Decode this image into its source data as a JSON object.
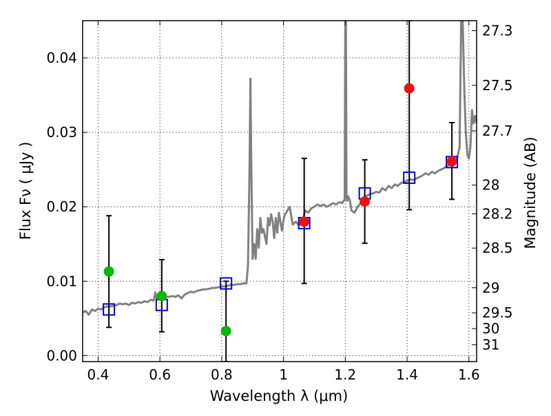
{
  "chart_data": {
    "type": "scatter",
    "xlabel": "Wavelength  λ (μm)",
    "ylabel": "Flux  Fν  ( μJy )",
    "ylabel_right": "Magnitude (AB)",
    "xlim": [
      0.35,
      1.625
    ],
    "ylim": [
      -0.0008,
      0.045
    ],
    "grid": true,
    "x_ticks": [
      0.4,
      0.6,
      0.8,
      1.0,
      1.2,
      1.4,
      1.6
    ],
    "x_tick_labels": [
      "0.4",
      "0.6",
      "0.8",
      "1",
      "1.2",
      "1.4",
      "1.6"
    ],
    "y_ticks": [
      0.0,
      0.01,
      0.02,
      0.03,
      0.04
    ],
    "y_tick_labels": [
      "0.00",
      "0.01",
      "0.02",
      "0.03",
      "0.04"
    ],
    "right_ticks": [
      {
        "label": "27.3",
        "flux": 0.04365
      },
      {
        "label": "27.5",
        "flux": 0.03631
      },
      {
        "label": "27.7",
        "flux": 0.0302
      },
      {
        "label": "28",
        "flux": 0.02291
      },
      {
        "label": "28.2",
        "flux": 0.01905
      },
      {
        "label": "28.5",
        "flux": 0.01445
      },
      {
        "label": "29",
        "flux": 0.00912
      },
      {
        "label": "29.5",
        "flux": 0.00575
      },
      {
        "label": "30",
        "flux": 0.00363
      },
      {
        "label": "31",
        "flux": 0.00145
      }
    ],
    "colors": {
      "model": "#808080",
      "green_points": "#00bb00",
      "red_points": "#ee1111",
      "squares": "#0000cc",
      "errorbar": "#000000"
    },
    "series": [
      {
        "kind": "model-spectrum",
        "x": [
          0.35,
          0.36,
          0.37,
          0.38,
          0.39,
          0.4,
          0.41,
          0.42,
          0.43,
          0.44,
          0.45,
          0.46,
          0.47,
          0.48,
          0.49,
          0.5,
          0.51,
          0.52,
          0.53,
          0.54,
          0.55,
          0.56,
          0.57,
          0.58,
          0.585,
          0.59,
          0.6,
          0.61,
          0.62,
          0.63,
          0.64,
          0.65,
          0.66,
          0.67,
          0.68,
          0.69,
          0.7,
          0.71,
          0.72,
          0.73,
          0.74,
          0.75,
          0.76,
          0.77,
          0.78,
          0.79,
          0.8,
          0.81,
          0.82,
          0.83,
          0.84,
          0.85,
          0.86,
          0.87,
          0.88,
          0.885,
          0.89,
          0.893,
          0.896,
          0.9,
          0.905,
          0.91,
          0.915,
          0.92,
          0.925,
          0.93,
          0.935,
          0.94,
          0.945,
          0.95,
          0.955,
          0.96,
          0.965,
          0.97,
          0.975,
          0.98,
          0.985,
          0.99,
          0.995,
          1.0,
          1.005,
          1.01,
          1.02,
          1.03,
          1.04,
          1.05,
          1.06,
          1.07,
          1.08,
          1.09,
          1.1,
          1.11,
          1.12,
          1.13,
          1.14,
          1.15,
          1.16,
          1.17,
          1.18,
          1.19,
          1.198,
          1.2,
          1.202,
          1.204,
          1.206,
          1.208,
          1.21,
          1.215,
          1.22,
          1.23,
          1.24,
          1.25,
          1.26,
          1.27,
          1.28,
          1.29,
          1.3,
          1.31,
          1.32,
          1.33,
          1.34,
          1.35,
          1.36,
          1.37,
          1.38,
          1.39,
          1.4,
          1.41,
          1.42,
          1.43,
          1.44,
          1.45,
          1.46,
          1.47,
          1.48,
          1.49,
          1.5,
          1.51,
          1.52,
          1.53,
          1.54,
          1.55,
          1.56,
          1.57,
          1.575,
          1.58,
          1.585,
          1.59,
          1.595,
          1.6,
          1.605,
          1.61,
          1.615,
          1.62,
          1.625
        ],
        "y": [
          0.0058,
          0.006,
          0.0055,
          0.0062,
          0.006,
          0.0063,
          0.0062,
          0.0065,
          0.0066,
          0.0066,
          0.0067,
          0.0068,
          0.007,
          0.0069,
          0.007,
          0.0068,
          0.0071,
          0.007,
          0.0072,
          0.0071,
          0.0073,
          0.0072,
          0.0075,
          0.0074,
          0.0085,
          0.0076,
          0.0077,
          0.0078,
          0.0079,
          0.0079,
          0.008,
          0.0079,
          0.0081,
          0.0077,
          0.0082,
          0.0084,
          0.0086,
          0.0085,
          0.0087,
          0.0088,
          0.0089,
          0.0089,
          0.009,
          0.0091,
          0.0091,
          0.0092,
          0.0093,
          0.0093,
          0.0094,
          0.0095,
          0.0095,
          0.0096,
          0.0096,
          0.0097,
          0.0097,
          0.012,
          0.025,
          0.0372,
          0.025,
          0.013,
          0.015,
          0.013,
          0.017,
          0.0145,
          0.0185,
          0.0165,
          0.017,
          0.016,
          0.015,
          0.0185,
          0.0175,
          0.019,
          0.018,
          0.0158,
          0.0185,
          0.0165,
          0.0192,
          0.018,
          0.0168,
          0.0182,
          0.019,
          0.0193,
          0.02,
          0.0176,
          0.018,
          0.0175,
          0.0178,
          0.0195,
          0.0192,
          0.0198,
          0.02,
          0.0203,
          0.0201,
          0.0203,
          0.02,
          0.0202,
          0.0205,
          0.0203,
          0.0206,
          0.0205,
          0.021,
          0.045,
          0.045,
          0.0212,
          0.0208,
          0.021,
          0.0214,
          0.0208,
          0.0195,
          0.0192,
          0.02,
          0.0205,
          0.0213,
          0.0215,
          0.0217,
          0.0218,
          0.022,
          0.0219,
          0.0225,
          0.0222,
          0.0228,
          0.0225,
          0.023,
          0.0228,
          0.0232,
          0.0233,
          0.0235,
          0.0237,
          0.0236,
          0.0238,
          0.024,
          0.0242,
          0.0245,
          0.0243,
          0.0247,
          0.0245,
          0.0248,
          0.025,
          0.0252,
          0.0255,
          0.0257,
          0.026,
          0.0262,
          0.028,
          0.045,
          0.045,
          0.036,
          0.03,
          0.027,
          0.0265,
          0.028,
          0.033,
          0.0312,
          0.0322,
          0.0312
        ]
      },
      {
        "kind": "errorbars",
        "points": [
          {
            "x": 0.435,
            "low": 0.0038,
            "high": 0.0188
          },
          {
            "x": 0.606,
            "low": 0.0032,
            "high": 0.0129
          },
          {
            "x": 0.814,
            "low": -0.0008,
            "high": 0.01
          },
          {
            "x": 1.067,
            "low": 0.0097,
            "high": 0.0265
          },
          {
            "x": 1.263,
            "low": 0.0151,
            "high": 0.0263
          },
          {
            "x": 1.407,
            "low": 0.0196,
            "high": 0.045
          },
          {
            "x": 1.545,
            "low": 0.021,
            "high": 0.0313
          }
        ]
      },
      {
        "kind": "squares",
        "points": [
          {
            "x": 0.435,
            "y": 0.0062
          },
          {
            "x": 0.606,
            "y": 0.0068
          },
          {
            "x": 0.814,
            "y": 0.0097
          },
          {
            "x": 1.067,
            "y": 0.0178
          },
          {
            "x": 1.263,
            "y": 0.0218
          },
          {
            "x": 1.407,
            "y": 0.0239
          },
          {
            "x": 1.545,
            "y": 0.026
          }
        ]
      },
      {
        "kind": "green-circles",
        "points": [
          {
            "x": 0.435,
            "y": 0.0113
          },
          {
            "x": 0.606,
            "y": 0.008
          },
          {
            "x": 0.814,
            "y": 0.0033
          }
        ]
      },
      {
        "kind": "red-circles",
        "points": [
          {
            "x": 1.067,
            "y": 0.018
          },
          {
            "x": 1.263,
            "y": 0.0207
          },
          {
            "x": 1.407,
            "y": 0.0359
          },
          {
            "x": 1.545,
            "y": 0.0261
          }
        ]
      }
    ]
  }
}
